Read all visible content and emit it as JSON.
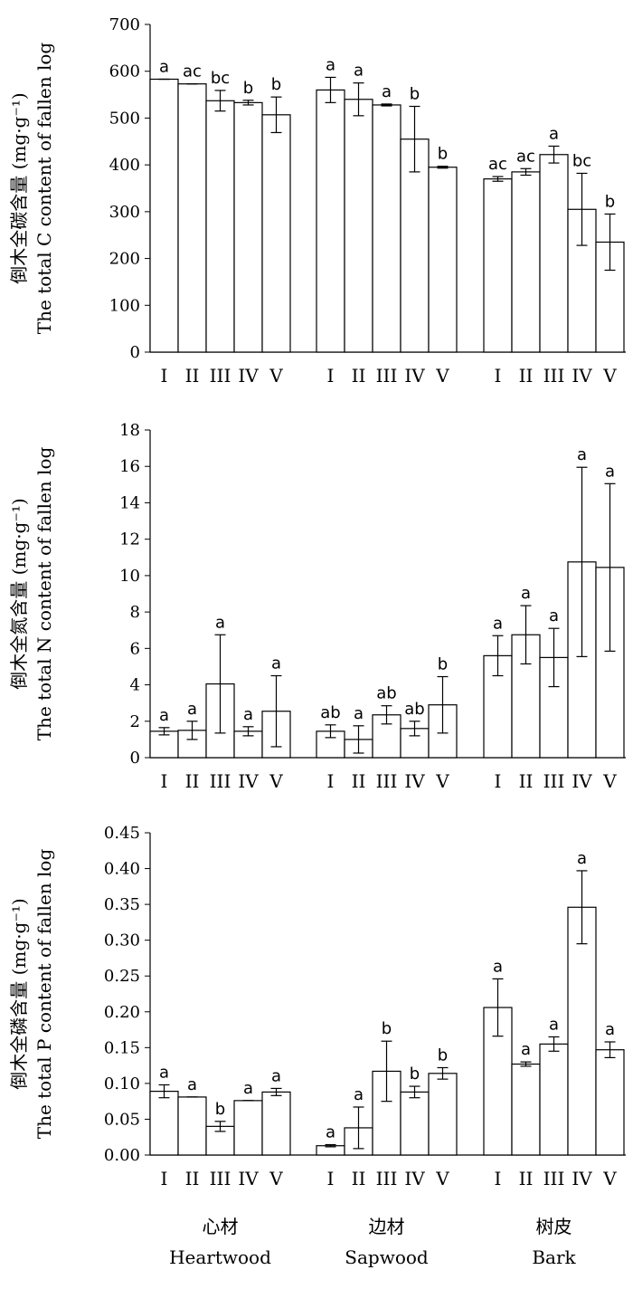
{
  "chart_data": [
    {
      "type": "bar",
      "ylabel_cn": "倒木全碳含量 (mg·g⁻¹)",
      "ylabel_en": "The total C content of fallen log",
      "ylim": [
        0,
        700
      ],
      "yticks": [
        "0",
        "100",
        "200",
        "300",
        "400",
        "500",
        "600",
        "700"
      ],
      "groups": [
        {
          "categories": [
            "I",
            "II",
            "III",
            "IV",
            "V"
          ],
          "values": [
            583,
            573,
            537,
            533,
            507
          ],
          "errors": [
            0,
            0,
            22,
            5,
            38
          ],
          "letters": [
            "a",
            "ac",
            "bc",
            "b",
            "b"
          ]
        },
        {
          "categories": [
            "I",
            "II",
            "III",
            "IV",
            "V"
          ],
          "values": [
            560,
            540,
            528,
            455,
            395
          ],
          "errors": [
            27,
            35,
            2,
            70,
            2
          ],
          "letters": [
            "a",
            "a",
            "a",
            "b",
            "b"
          ]
        },
        {
          "categories": [
            "I",
            "II",
            "III",
            "IV",
            "V"
          ],
          "values": [
            370,
            385,
            422,
            305,
            235
          ],
          "errors": [
            5,
            7,
            18,
            77,
            60
          ],
          "letters": [
            "ac",
            "ac",
            "a",
            "bc",
            "b"
          ]
        }
      ]
    },
    {
      "type": "bar",
      "ylabel_cn": "倒木全氮含量 (mg·g⁻¹)",
      "ylabel_en": "The total N content of fallen log",
      "ylim": [
        0,
        18
      ],
      "yticks": [
        "0",
        "2",
        "4",
        "6",
        "8",
        "10",
        "12",
        "14",
        "16",
        "18"
      ],
      "groups": [
        {
          "categories": [
            "I",
            "II",
            "III",
            "IV",
            "V"
          ],
          "values": [
            1.45,
            1.5,
            4.05,
            1.45,
            2.55
          ],
          "errors": [
            0.2,
            0.5,
            2.7,
            0.25,
            1.95
          ],
          "letters": [
            "a",
            "a",
            "a",
            "a",
            "a"
          ]
        },
        {
          "categories": [
            "I",
            "II",
            "III",
            "IV",
            "V"
          ],
          "values": [
            1.45,
            1.0,
            2.35,
            1.6,
            2.9
          ],
          "errors": [
            0.35,
            0.75,
            0.5,
            0.4,
            1.55
          ],
          "letters": [
            "ab",
            "a",
            "ab",
            "ab",
            "b"
          ]
        },
        {
          "categories": [
            "I",
            "II",
            "III",
            "IV",
            "V"
          ],
          "values": [
            5.6,
            6.75,
            5.5,
            10.75,
            10.45
          ],
          "errors": [
            1.1,
            1.6,
            1.6,
            5.2,
            4.6
          ],
          "letters": [
            "a",
            "a",
            "a",
            "a",
            "a"
          ]
        }
      ]
    },
    {
      "type": "bar",
      "ylabel_cn": "倒木全磷含量 (mg·g⁻¹)",
      "ylabel_en": "The total P content of fallen log",
      "ylim": [
        0,
        0.45
      ],
      "yticks": [
        "0.00",
        "0.05",
        "0.10",
        "0.15",
        "0.20",
        "0.25",
        "0.30",
        "0.35",
        "0.40",
        "0.45"
      ],
      "groups": [
        {
          "categories": [
            "I",
            "II",
            "III",
            "IV",
            "V"
          ],
          "values": [
            0.089,
            0.081,
            0.04,
            0.076,
            0.088
          ],
          "errors": [
            0.009,
            0.0,
            0.007,
            0.0,
            0.005
          ],
          "letters": [
            "a",
            "a",
            "b",
            "a",
            "a"
          ]
        },
        {
          "categories": [
            "I",
            "II",
            "III",
            "IV",
            "V"
          ],
          "values": [
            0.013,
            0.038,
            0.117,
            0.088,
            0.114
          ],
          "errors": [
            0.0015,
            0.029,
            0.042,
            0.008,
            0.008
          ],
          "letters": [
            "a",
            "a",
            "b",
            "b",
            "b"
          ]
        },
        {
          "categories": [
            "I",
            "II",
            "III",
            "IV",
            "V"
          ],
          "values": [
            0.206,
            0.127,
            0.155,
            0.346,
            0.147
          ],
          "errors": [
            0.04,
            0.003,
            0.01,
            0.051,
            0.011
          ],
          "letters": [
            "a",
            "a",
            "a",
            "a",
            "a"
          ]
        }
      ]
    }
  ],
  "group_labels": [
    {
      "cn": "心材",
      "en": "Heartwood"
    },
    {
      "cn": "边材",
      "en": "Sapwood"
    },
    {
      "cn": "树皮",
      "en": "Bark"
    }
  ]
}
